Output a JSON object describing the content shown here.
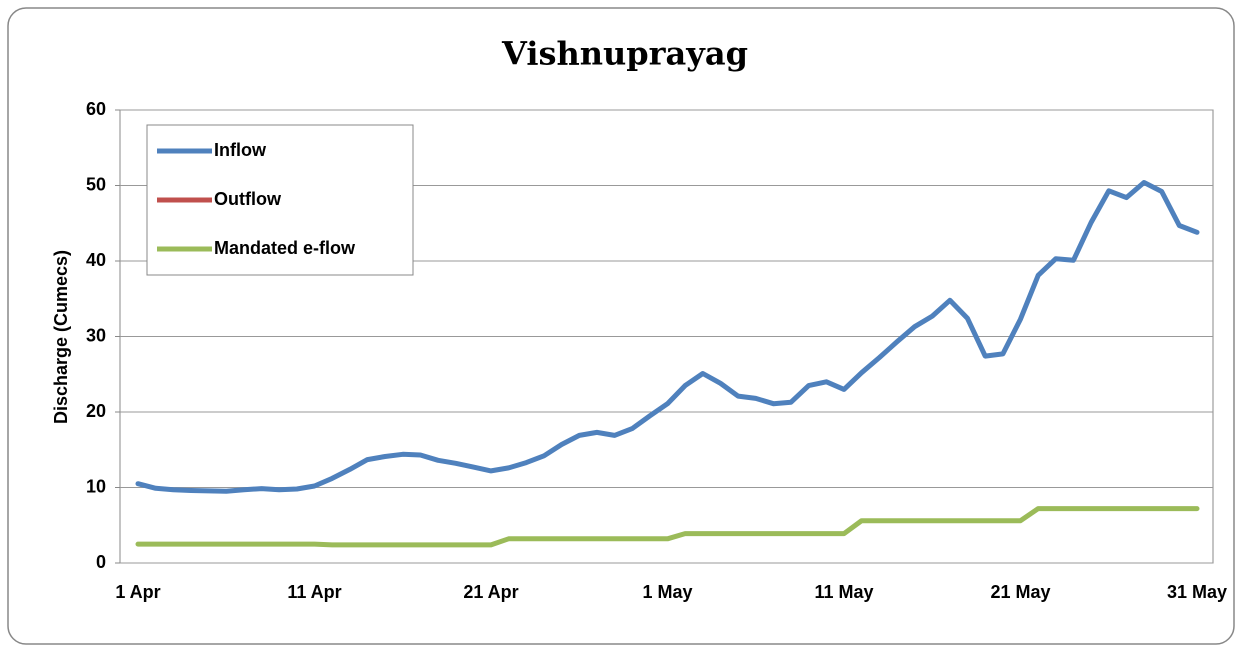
{
  "chart_data": {
    "type": "line",
    "title": "Vishnuprayag",
    "y_label": "Discharge (Cumecs)",
    "categories": [
      "1 Apr",
      null,
      null,
      null,
      null,
      null,
      null,
      null,
      null,
      null,
      "11 Apr",
      null,
      null,
      null,
      null,
      null,
      null,
      null,
      null,
      null,
      "21 Apr",
      null,
      null,
      null,
      null,
      null,
      null,
      null,
      null,
      null,
      "1 May",
      null,
      null,
      null,
      null,
      null,
      null,
      null,
      null,
      null,
      "11 May",
      null,
      null,
      null,
      null,
      null,
      null,
      null,
      null,
      null,
      "21 May",
      null,
      null,
      null,
      null,
      null,
      null,
      null,
      null,
      null,
      "31 May"
    ],
    "series": [
      {
        "name": "Inflow",
        "color": "#4f81bd",
        "values": [
          10.5,
          9.9,
          9.7,
          9.6,
          9.55,
          9.5,
          9.7,
          9.85,
          9.7,
          9.8,
          10.2,
          11.2,
          12.4,
          13.7,
          14.1,
          14.4,
          14.3,
          13.6,
          13.2,
          12.7,
          12.2,
          12.6,
          13.3,
          14.2,
          15.7,
          16.9,
          17.3,
          16.9,
          17.8,
          19.5,
          21.1,
          23.5,
          25.1,
          23.8,
          22.1,
          21.8,
          21.1,
          21.3,
          23.5,
          24.0,
          23.0,
          25.2,
          27.2,
          29.3,
          31.3,
          32.7,
          34.8,
          32.4,
          27.4,
          27.7,
          32.3,
          38.1,
          40.3,
          40.1,
          45.1,
          49.3,
          48.4,
          50.4,
          49.2,
          44.7,
          43.8
        ]
      },
      {
        "name": "Outflow",
        "color": "#c0504d",
        "values": [
          null,
          null,
          null,
          null,
          null,
          null,
          null,
          null,
          null,
          null,
          null,
          null,
          null,
          null,
          null,
          null,
          null,
          null,
          null,
          null,
          null,
          null,
          null,
          null,
          null,
          null,
          null,
          null,
          null,
          null,
          null,
          null,
          null,
          null,
          null,
          null,
          null,
          null,
          null,
          null,
          null,
          null,
          null,
          null,
          null,
          null,
          null,
          null,
          null,
          null,
          null,
          null,
          null,
          null,
          null,
          null,
          null,
          null,
          null,
          null,
          null
        ]
      },
      {
        "name": "Mandated e-flow",
        "color": "#9bbb59",
        "values": [
          2.5,
          2.5,
          2.5,
          2.5,
          2.5,
          2.5,
          2.5,
          2.5,
          2.5,
          2.5,
          2.5,
          2.4,
          2.4,
          2.4,
          2.4,
          2.4,
          2.4,
          2.4,
          2.4,
          2.4,
          2.4,
          3.2,
          3.2,
          3.2,
          3.2,
          3.2,
          3.2,
          3.2,
          3.2,
          3.2,
          3.2,
          3.9,
          3.9,
          3.9,
          3.9,
          3.9,
          3.9,
          3.9,
          3.9,
          3.9,
          3.9,
          5.6,
          5.6,
          5.6,
          5.6,
          5.6,
          5.6,
          5.6,
          5.6,
          5.6,
          5.6,
          7.2,
          7.2,
          7.2,
          7.2,
          7.2,
          7.2,
          7.2,
          7.2,
          7.2,
          7.2
        ]
      }
    ],
    "ylim": [
      0,
      60
    ],
    "yticks": [
      0,
      10,
      20,
      30,
      40,
      50,
      60
    ],
    "grid": true,
    "legend": "top-left"
  }
}
